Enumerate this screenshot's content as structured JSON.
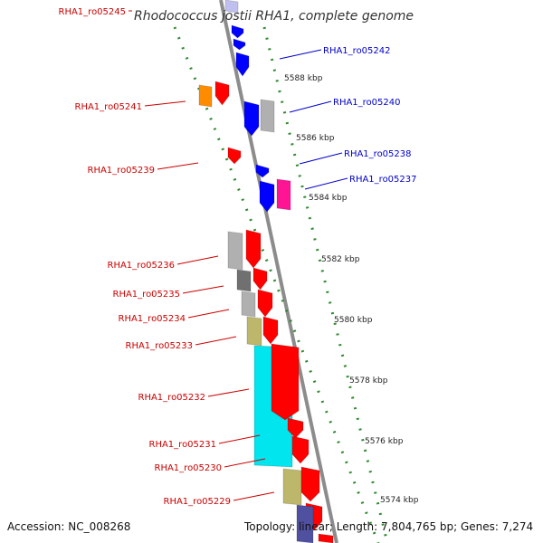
{
  "title": "Rhodococcus jostii RHA1, complete genome",
  "footer": {
    "accession": "Accession: NC_008268",
    "summary": "Topology: linear; Length: 7,804,765 bp; Genes: 7,274"
  },
  "colors": {
    "backbone": "#8c8c8c",
    "ruler": "#2e8b2e",
    "minus_label": "#cc0000",
    "plus_label": "#0000cc",
    "red": "#ff0000",
    "blue": "#0000ff",
    "orange": "#ff8c00",
    "grey": "#b0b0b0",
    "darkgrey": "#707070",
    "khaki": "#bdb76b",
    "cyan": "#00e5ee",
    "magenta": "#ff1493",
    "lavender": "#c0c0f0",
    "navy": "#5050a0"
  },
  "ruler_ticks": [
    "5588 kbp",
    "5586 kbp",
    "5584 kbp",
    "5582 kbp",
    "5580 kbp",
    "5578 kbp",
    "5576 kbp",
    "5574 kbp"
  ],
  "genes_plus": [
    "RHA1_ro05242",
    "RHA1_ro05240",
    "RHA1_ro05238",
    "RHA1_ro05237"
  ],
  "genes_minus": [
    "RHA1_ro05245",
    "RHA1_ro05241",
    "RHA1_ro05239",
    "RHA1_ro05236",
    "RHA1_ro05235",
    "RHA1_ro05234",
    "RHA1_ro05233",
    "RHA1_ro05232",
    "RHA1_ro05231",
    "RHA1_ro05230",
    "RHA1_ro05229"
  ]
}
